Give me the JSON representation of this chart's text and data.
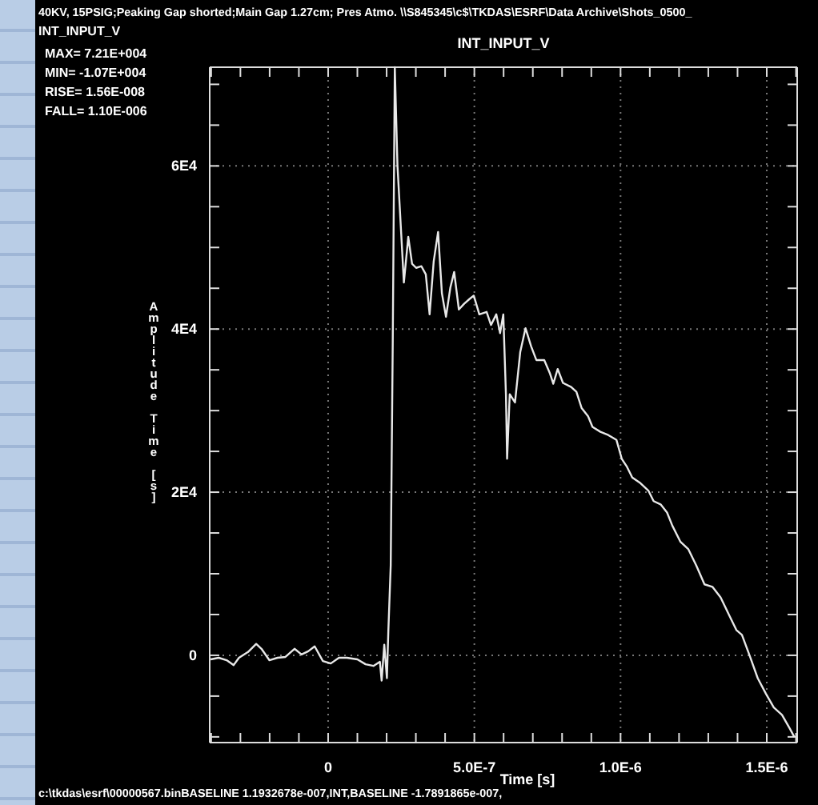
{
  "chart_data": {
    "type": "line",
    "title": "INT_INPUT_V",
    "xlabel": "Time [s]",
    "ylabel": "Amplitude Time [s]",
    "annotations": [
      "40KV, 15PSIG;Peaking Gap shorted;Main Gap 1.27cm; Pres Atmo.   \\\\S845345\\c$\\TKDAS\\ESRF\\Data Archive\\Shots_0500_",
      "INT_INPUT_V",
      "MAX= 7.21E+004",
      "MIN= -1.07E+004",
      "RISE= 1.56E-008",
      "FALL= 1.10E-006",
      "c:\\tkdas\\esrf\\00000567.binBASELINE 1.1932678e-007,INT,BASELINE -1.7891865e-007,"
    ],
    "xlim": [
      -4.05e-07,
      1.604e-06
    ],
    "ylim": [
      -10700,
      72100
    ],
    "xticks": [
      {
        "value": -4e-07,
        "label": null
      },
      {
        "value": -3e-07,
        "label": null
      },
      {
        "value": -2e-07,
        "label": null
      },
      {
        "value": -1e-07,
        "label": null
      },
      0,
      {
        "value": 1e-07,
        "label": null
      },
      {
        "value": 2e-07,
        "label": null
      },
      {
        "value": 3e-07,
        "label": null
      },
      {
        "value": 4e-07,
        "label": null
      },
      {
        "value": 5e-07,
        "label": "5.0E-7"
      },
      {
        "value": 6e-07,
        "label": null
      },
      {
        "value": 7e-07,
        "label": null
      },
      {
        "value": 8e-07,
        "label": null
      },
      {
        "value": 9e-07,
        "label": null
      },
      {
        "value": 1e-06,
        "label": "1.0E-6"
      },
      {
        "value": 1.1e-06,
        "label": null
      },
      {
        "value": 1.2e-06,
        "label": null
      },
      {
        "value": 1.3e-06,
        "label": null
      },
      {
        "value": 1.4e-06,
        "label": null
      },
      {
        "value": 1.5e-06,
        "label": "1.5E-6"
      },
      {
        "value": 1.6e-06,
        "label": null
      }
    ],
    "yticks": [
      {
        "value": -10000,
        "label": null
      },
      {
        "value": -5000,
        "label": null
      },
      0,
      {
        "value": 5000,
        "label": null
      },
      {
        "value": 10000,
        "label": null
      },
      {
        "value": 15000,
        "label": null
      },
      {
        "value": 20000,
        "label": "2E4"
      },
      {
        "value": 25000,
        "label": null
      },
      {
        "value": 30000,
        "label": null
      },
      {
        "value": 35000,
        "label": null
      },
      {
        "value": 40000,
        "label": "4E4"
      },
      {
        "value": 45000,
        "label": null
      },
      {
        "value": 50000,
        "label": null
      },
      {
        "value": 55000,
        "label": null
      },
      {
        "value": 60000,
        "label": "6E4"
      },
      {
        "value": 65000,
        "label": null
      },
      {
        "value": 70000,
        "label": null
      }
    ],
    "grid": true,
    "series": [
      {
        "color": "#e8e8e8",
        "x": [
          -4.02e-07,
          -3.74e-07,
          -3.47e-07,
          -3.23e-07,
          -3.05e-07,
          -2.74e-07,
          -2.46e-07,
          -2.28e-07,
          -2.01e-07,
          -1.73e-07,
          -1.46e-07,
          -1.15e-07,
          -9.1e-08,
          -6.8e-08,
          -4.6e-08,
          -1.8e-08,
          9e-09,
          3.7e-08,
          6.4e-08,
          1e-07,
          1.28e-07,
          1.55e-07,
          1.77e-07,
          1.83e-07,
          1.92e-07,
          2.01e-07,
          2.06e-07,
          2.14e-07,
          2.21e-07,
          2.28e-07,
          2.37e-07,
          2.5e-07,
          2.59e-07,
          2.74e-07,
          2.87e-07,
          3.01e-07,
          3.19e-07,
          3.34e-07,
          3.47e-07,
          3.61e-07,
          3.76e-07,
          3.89e-07,
          4.03e-07,
          4.18e-07,
          4.31e-07,
          4.47e-07,
          4.65e-07,
          4.84e-07,
          4.98e-07,
          5.17e-07,
          5.42e-07,
          5.57e-07,
          5.75e-07,
          5.88e-07,
          5.99e-07,
          6.08e-07,
          6.12e-07,
          6.21e-07,
          6.39e-07,
          6.57e-07,
          6.75e-07,
          6.94e-07,
          7.12e-07,
          7.39e-07,
          7.58e-07,
          7.7e-07,
          7.85e-07,
          8.03e-07,
          8.31e-07,
          8.49e-07,
          8.67e-07,
          8.89e-07,
          9.04e-07,
          9.31e-07,
          9.58e-07,
          9.86e-07,
          1.004e-06,
          1.022e-06,
          1.04e-06,
          1.068e-06,
          1.095e-06,
          1.113e-06,
          1.137e-06,
          1.159e-06,
          1.177e-06,
          1.205e-06,
          1.232e-06,
          1.259e-06,
          1.287e-06,
          1.314e-06,
          1.342e-06,
          1.369e-06,
          1.396e-06,
          1.415e-06,
          1.442e-06,
          1.469e-06,
          1.497e-06,
          1.524e-06,
          1.552e-06,
          1.579e-06,
          1.594e-06
        ],
        "values": [
          -500,
          -300,
          -600,
          -1200,
          -300,
          400,
          1400,
          800,
          -600,
          -300,
          -200,
          800,
          100,
          500,
          1100,
          -700,
          -1000,
          -300,
          -300,
          -500,
          -1100,
          -1300,
          -800,
          -3100,
          1300,
          -2800,
          3100,
          11000,
          38500,
          72100,
          60100,
          51600,
          45700,
          51300,
          48000,
          47500,
          47700,
          46700,
          41800,
          48300,
          51900,
          44400,
          41500,
          45100,
          47000,
          42400,
          43100,
          43700,
          44100,
          41800,
          42100,
          40500,
          41800,
          39500,
          41800,
          32000,
          24100,
          32000,
          31000,
          37200,
          40100,
          37900,
          36200,
          36200,
          34600,
          33300,
          35100,
          33400,
          32900,
          32300,
          30300,
          29300,
          28000,
          27400,
          27000,
          26400,
          24100,
          23100,
          21800,
          21100,
          20200,
          18900,
          18500,
          17500,
          15900,
          13900,
          13000,
          11000,
          8700,
          8400,
          7100,
          5100,
          3100,
          2500,
          -100,
          -2800,
          -4700,
          -6400,
          -7300,
          -9000,
          -10000
        ]
      }
    ]
  }
}
